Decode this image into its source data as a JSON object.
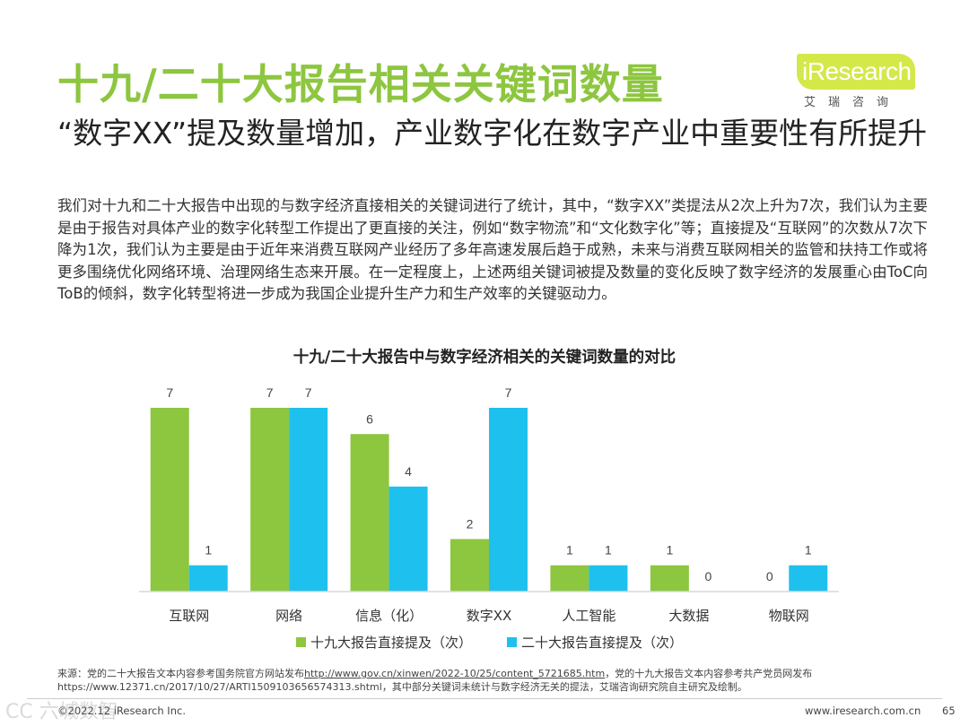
{
  "title": "十九/二十大报告相关关键词数量",
  "logo": {
    "text": "iResearch",
    "cn": "艾瑞咨询"
  },
  "subtitle": "“数字XX”提及数量增加，产业数字化在数字产业中重要性有所提升",
  "body": "我们对十九和二十大报告中出现的与数字经济直接相关的关键词进行了统计，其中，“数字XX”类提法从2次上升为7次，我们认为主要是由于报告对具体产业的数字化转型工作提出了更直接的关注，例如“数字物流”和“文化数字化”等；直接提及“互联网”的次数从7次下降为1次，我们认为主要是由于近年来消费互联网产业经历了多年高速发展后趋于成熟，未来与消费互联网相关的监管和扶持工作或将更多围绕优化网络环境、治理网络生态来开展。在一定程度上，上述两组关键词被提及数量的变化反映了数字经济的发展重心由ToC向ToB的倾斜，数字化转型将进一步成为我国企业提升生产力和生产效率的关键驱动力。",
  "chart_data": {
    "type": "bar",
    "title": "十九/二十大报告中与数字经济相关的关键词数量的对比",
    "categories": [
      "互联网",
      "网络",
      "信息（化）",
      "数字XX",
      "人工智能",
      "大数据",
      "物联网"
    ],
    "series": [
      {
        "name": "十九大报告直接提及（次）",
        "values": [
          7,
          7,
          6,
          2,
          1,
          1,
          0
        ],
        "color": "#8dc63f"
      },
      {
        "name": "二十大报告直接提及（次）",
        "values": [
          1,
          7,
          4,
          7,
          1,
          0,
          1
        ],
        "color": "#1ec0ee"
      }
    ],
    "ylim": [
      0,
      7
    ],
    "grid": false,
    "legend": "bottom"
  },
  "source": {
    "prefix": "来源：党的二十大报告文本内容参考国务院官方网站发布",
    "url1": "http://www.gov.cn/xinwen/2022-10/25/content_5721685.htm",
    "mid": "，党的十九大报告文本内容参考共产党员网发布",
    "line2": "https://www.12371.cn/2017/10/27/ARTI1509103656574313.shtml，其中部分关键词未统计与数字经济无关的提法，艾瑞咨询研究院自主研究及绘制。"
  },
  "footer": {
    "copyright": "©2022.12 iResearch Inc.",
    "url": "www.iresearch.com.cn",
    "page": "65"
  },
  "watermark": "CC 六城数智"
}
